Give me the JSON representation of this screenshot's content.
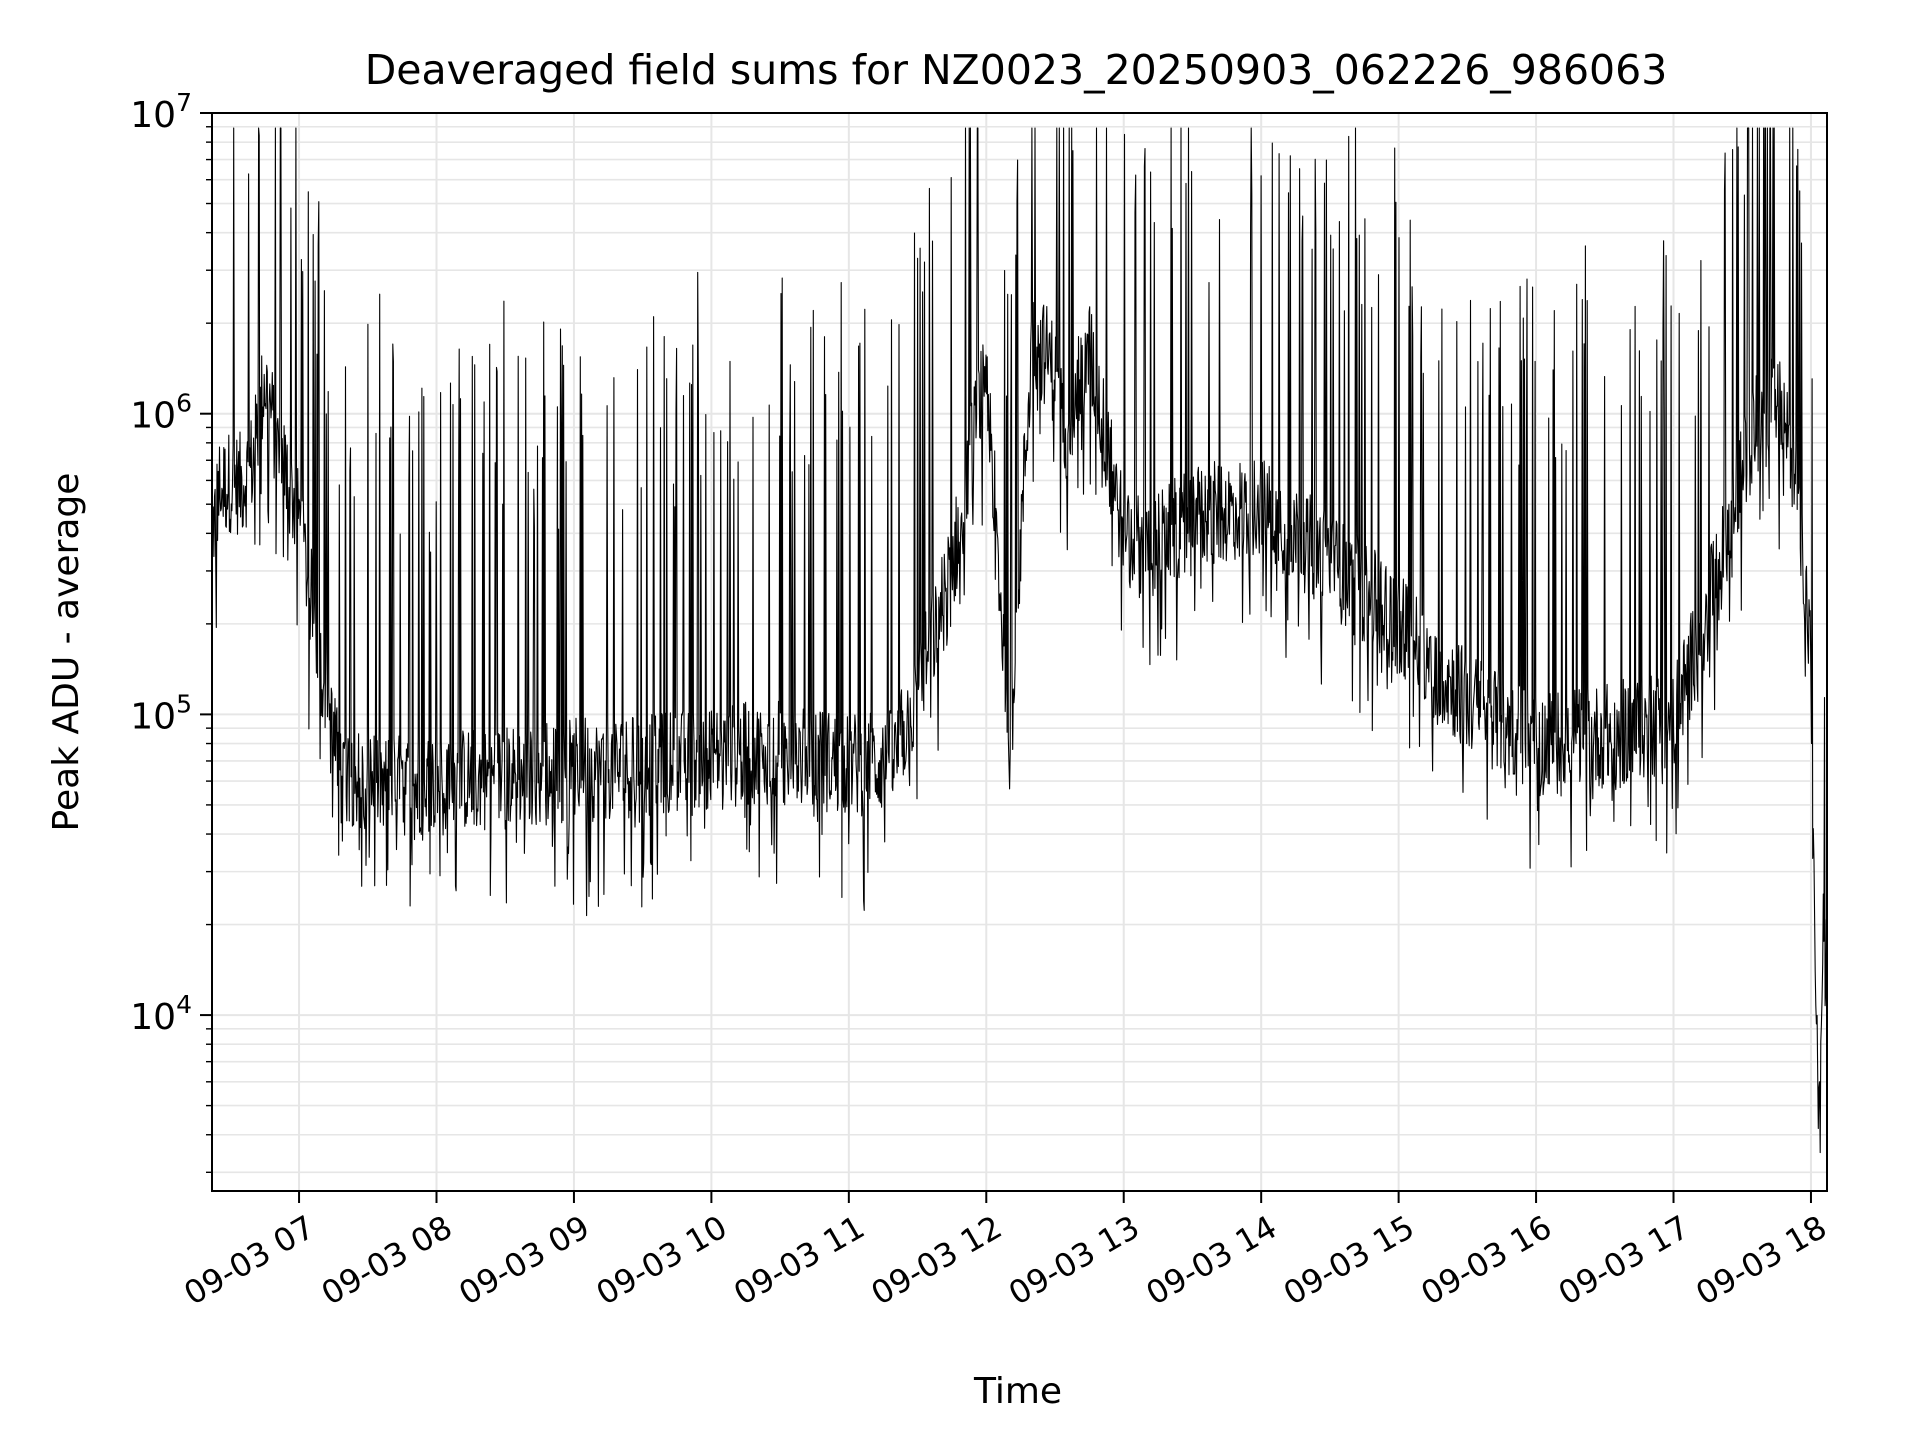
{
  "chart_data": {
    "type": "line",
    "title": "Deaveraged field sums for NZ0023_20250903_062226_986063",
    "xlabel": "Time",
    "ylabel": "Peak ADU - average",
    "x_ticks": [
      "09-03 07",
      "09-03 08",
      "09-03 09",
      "09-03 10",
      "09-03 11",
      "09-03 12",
      "09-03 13",
      "09-03 14",
      "09-03 15",
      "09-03 16",
      "09-03 17",
      "09-03 18"
    ],
    "x_range": [
      "2025-09-03 06:22",
      "2025-09-03 18:07"
    ],
    "y_scale": "log",
    "ylim": [
      2600,
      10000000
    ],
    "y_ticks": [
      10000,
      100000,
      1000000,
      10000000
    ],
    "y_tick_labels": [
      {
        "base": "10",
        "exp": "4"
      },
      {
        "base": "10",
        "exp": "5"
      },
      {
        "base": "10",
        "exp": "6"
      },
      {
        "base": "10",
        "exp": "7"
      }
    ],
    "grid": true,
    "line_color": "#000000",
    "grid_color": "#e6e6e6",
    "series": [
      {
        "x": [
          "06:22",
          "06:25",
          "06:30",
          "06:35",
          "06:40",
          "06:45",
          "06:48",
          "06:50",
          "06:55",
          "07:00",
          "07:05",
          "07:10",
          "07:15",
          "07:20",
          "07:30",
          "07:45",
          "08:00",
          "08:30",
          "09:00",
          "09:30",
          "10:00",
          "10:30",
          "11:00",
          "11:20",
          "11:30",
          "11:45",
          "12:00",
          "12:10",
          "12:20",
          "12:28",
          "12:35",
          "12:45",
          "13:00",
          "13:10",
          "13:30",
          "14:00",
          "14:30",
          "15:00",
          "15:30",
          "16:00",
          "16:30",
          "17:00",
          "17:20",
          "17:35",
          "17:45",
          "17:50",
          "17:55",
          "18:00",
          "18:01",
          "18:02",
          "18:03",
          "18:04",
          "18:05",
          "18:06",
          "18:07"
        ],
        "y": [
          400000,
          550000,
          600000,
          580000,
          700000,
          1300000,
          1000000,
          800000,
          600000,
          450000,
          250000,
          150000,
          80000,
          65000,
          60000,
          58000,
          60000,
          62000,
          65000,
          68000,
          72000,
          75000,
          68000,
          70000,
          120000,
          300000,
          1500000,
          80000,
          1800000,
          1500000,
          900000,
          1600000,
          400000,
          350000,
          450000,
          500000,
          320000,
          200000,
          110000,
          80000,
          85000,
          95000,
          300000,
          900000,
          1100000,
          800000,
          500000,
          150000,
          30000,
          15000,
          5000,
          4000,
          20000,
          15000,
          14000
        ]
      }
    ]
  }
}
